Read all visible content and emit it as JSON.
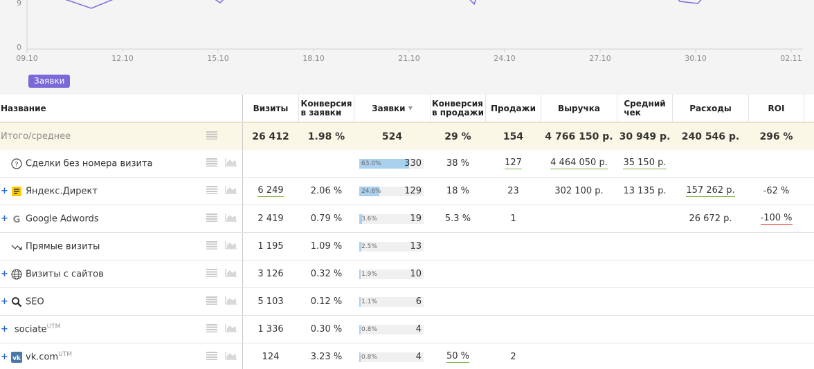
{
  "chart": {
    "y_ticks": [
      "9",
      "0"
    ],
    "x_ticks": [
      "09.10",
      "12.10",
      "15.10",
      "18.10",
      "21.10",
      "24.10",
      "27.10",
      "30.10",
      "02.11"
    ],
    "legend": "Заявки",
    "series_color": "#7b68d9"
  },
  "table": {
    "headers": {
      "name": "Название",
      "visits": "Визиты",
      "conv_leads_1": "Конверсия",
      "conv_leads_2": "в заявки",
      "leads": "Заявки",
      "sort_arrow": "▼",
      "conv_sales_1": "Конверсия",
      "conv_sales_2": "в продажи",
      "sales": "Продажи",
      "revenue": "Выручка",
      "avg_check_1": "Средний",
      "avg_check_2": "чек",
      "expenses": "Расходы",
      "roi": "ROI"
    },
    "total": {
      "name": "Итого/среднее",
      "visits": "26 412",
      "conv_leads": "1.98 %",
      "leads": "524",
      "conv_sales": "29 %",
      "sales": "154",
      "revenue": "4 766 150 р.",
      "avg_check": "30 949 р.",
      "expenses": "240 546 р.",
      "roi": "296 %"
    },
    "rows": [
      {
        "name": "Сделки без номера визита",
        "icon": "question-circle-icon",
        "expand": "",
        "utm": "",
        "visits": "",
        "conv_leads": "",
        "bar_pct": "63.0%",
        "bar_fraction": 0.63,
        "leads": "330",
        "conv_sales": "38 %",
        "sales": "127",
        "revenue": "4 464 050 р.",
        "avg_check": "35 150 р.",
        "expenses": "",
        "roi": ""
      },
      {
        "name": "Яндекс.Директ",
        "icon": "yandex-direct-icon",
        "expand": "+",
        "utm": "",
        "visits": "6 249",
        "conv_leads": "2.06 %",
        "bar_pct": "24.6%",
        "bar_fraction": 0.246,
        "leads": "129",
        "conv_sales": "18 %",
        "sales": "23",
        "revenue": "302 100 р.",
        "avg_check": "13 135 р.",
        "expenses": "157 262 р.",
        "roi": "-62 %"
      },
      {
        "name": "Google Adwords",
        "icon": "google-icon",
        "expand": "+",
        "utm": "",
        "visits": "2 419",
        "conv_leads": "0.79 %",
        "bar_pct": "3.6%",
        "bar_fraction": 0.036,
        "leads": "19",
        "conv_sales": "5.3 %",
        "sales": "1",
        "revenue": "",
        "avg_check": "",
        "expenses": "26 672 р.",
        "roi": "-100 %"
      },
      {
        "name": "Прямые визиты",
        "icon": "direct-arrow-icon",
        "expand": "",
        "utm": "",
        "visits": "1 195",
        "conv_leads": "1.09 %",
        "bar_pct": "2.5%",
        "bar_fraction": 0.025,
        "leads": "13",
        "conv_sales": "",
        "sales": "",
        "revenue": "",
        "avg_check": "",
        "expenses": "",
        "roi": ""
      },
      {
        "name": "Визиты с сайтов",
        "icon": "globe-icon",
        "expand": "+",
        "utm": "",
        "visits": "3 126",
        "conv_leads": "0.32 %",
        "bar_pct": "1.9%",
        "bar_fraction": 0.019,
        "leads": "10",
        "conv_sales": "",
        "sales": "",
        "revenue": "",
        "avg_check": "",
        "expenses": "",
        "roi": ""
      },
      {
        "name": "SEO",
        "icon": "search-icon",
        "expand": "+",
        "utm": "",
        "visits": "5 103",
        "conv_leads": "0.12 %",
        "bar_pct": "1.1%",
        "bar_fraction": 0.011,
        "leads": "6",
        "conv_sales": "",
        "sales": "",
        "revenue": "",
        "avg_check": "",
        "expenses": "",
        "roi": ""
      },
      {
        "name": "sociate",
        "icon": "",
        "expand": "+",
        "utm": "UTM",
        "visits": "1 336",
        "conv_leads": "0.30 %",
        "bar_pct": "0.8%",
        "bar_fraction": 0.008,
        "leads": "4",
        "conv_sales": "",
        "sales": "",
        "revenue": "",
        "avg_check": "",
        "expenses": "",
        "roi": ""
      },
      {
        "name": "vk.com",
        "icon": "vk-icon",
        "expand": "+",
        "utm": "UTM",
        "visits": "124",
        "conv_leads": "3.23 %",
        "bar_pct": "0.8%",
        "bar_fraction": 0.008,
        "leads": "4",
        "conv_sales": "50 %",
        "sales": "2",
        "revenue": "",
        "avg_check": "",
        "expenses": "",
        "roi": ""
      }
    ]
  }
}
